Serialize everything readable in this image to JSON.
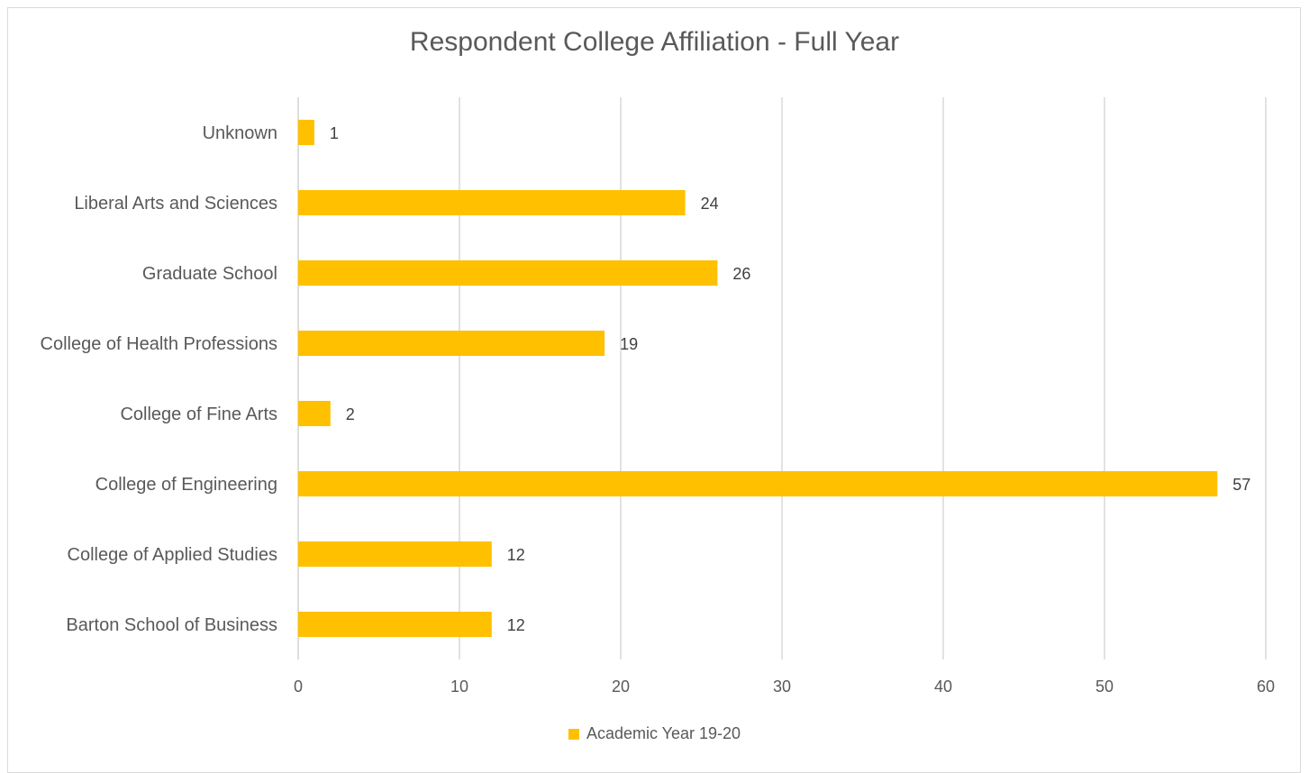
{
  "chart_data": {
    "type": "bar",
    "orientation": "horizontal",
    "title": "Respondent College Affiliation - Full Year",
    "categories": [
      "Barton School of Business",
      "College of Applied Studies",
      "College of Engineering",
      "College of Fine Arts",
      "College of Health Professions",
      "Graduate School",
      "Liberal Arts and Sciences",
      "Unknown"
    ],
    "series": [
      {
        "name": "Academic Year 19-20",
        "values": [
          12,
          12,
          57,
          2,
          19,
          26,
          24,
          1
        ],
        "color": "#FFC000"
      }
    ],
    "xlim": [
      0,
      60
    ],
    "x_ticks": [
      "0",
      "10",
      "20",
      "30",
      "40",
      "50",
      "60"
    ],
    "grid": true,
    "legend_position": "bottom",
    "data_labels": true
  }
}
